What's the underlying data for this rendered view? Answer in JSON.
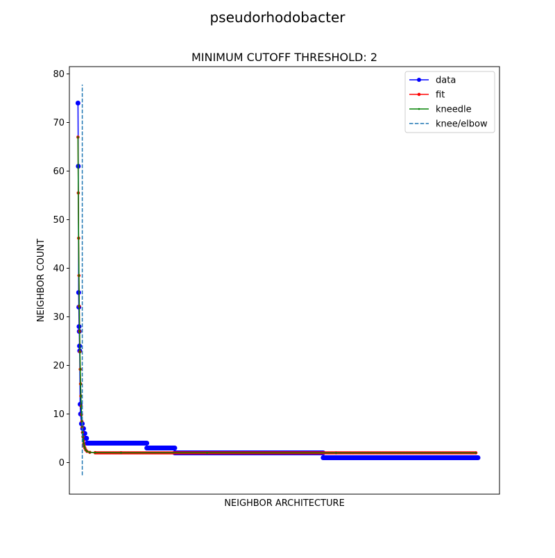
{
  "chart_data": {
    "type": "line",
    "suptitle": "pseudorhodobacter",
    "title": "MINIMUM CUTOFF THRESHOLD: 2",
    "xlabel": "NEIGHBOR ARCHITECTURE",
    "ylabel": "NEIGHBOR COUNT",
    "ylim": [
      -6.5,
      81.5
    ],
    "xlim": [
      -4,
      196
    ],
    "yticks": [
      0,
      10,
      20,
      30,
      40,
      50,
      60,
      70,
      80
    ],
    "xticks": [],
    "legend_position": "upper right",
    "knee_x": 2,
    "knee_ymin": -2.6,
    "knee_ymax": 77.8,
    "colors": {
      "data": "#0000ff",
      "fit": "#ff0000",
      "kneedle": "#008000",
      "knee": "#1f77b4"
    },
    "series": [
      {
        "name": "data",
        "style": "line-marker",
        "runs": [
          {
            "y": 74,
            "start": 0,
            "end": 0
          },
          {
            "y": 61,
            "start": 0.15,
            "end": 0.15
          },
          {
            "y": 35,
            "start": 0.3,
            "end": 0.3
          },
          {
            "y": 32,
            "start": 0.4,
            "end": 0.4
          },
          {
            "y": 28,
            "start": 0.5,
            "end": 0.5
          },
          {
            "y": 27,
            "start": 0.6,
            "end": 0.6
          },
          {
            "y": 24,
            "start": 0.7,
            "end": 0.7
          },
          {
            "y": 23,
            "start": 0.8,
            "end": 0.8
          },
          {
            "y": 12,
            "start": 1.0,
            "end": 1.0
          },
          {
            "y": 10,
            "start": 1.2,
            "end": 1.3
          },
          {
            "y": 8,
            "start": 1.6,
            "end": 2.0
          },
          {
            "y": 7,
            "start": 2.2,
            "end": 2.6
          },
          {
            "y": 6,
            "start": 2.8,
            "end": 3.2
          },
          {
            "y": 5,
            "start": 3.4,
            "end": 4.0
          },
          {
            "y": 4,
            "start": 4.2,
            "end": 32
          },
          {
            "y": 3,
            "start": 32,
            "end": 45
          },
          {
            "y": 2,
            "start": 45,
            "end": 114
          },
          {
            "y": 1,
            "start": 114,
            "end": 186
          }
        ]
      },
      {
        "name": "fit",
        "style": "line-marker",
        "points": [
          [
            0,
            67
          ],
          [
            0.15,
            55.5
          ],
          [
            0.3,
            46.2
          ],
          [
            0.45,
            38.5
          ],
          [
            0.6,
            32.2
          ],
          [
            0.75,
            27
          ],
          [
            0.9,
            22.8
          ],
          [
            1.05,
            19.2
          ],
          [
            1.2,
            16.2
          ],
          [
            1.35,
            13.7
          ],
          [
            1.5,
            11.6
          ],
          [
            1.65,
            9.9
          ],
          [
            1.8,
            8.5
          ],
          [
            1.95,
            7.3
          ],
          [
            2.1,
            6.2
          ],
          [
            2.3,
            5.3
          ],
          [
            2.5,
            4.5
          ],
          [
            2.7,
            3.9
          ],
          [
            2.9,
            3.4
          ],
          [
            3.2,
            3.0
          ],
          [
            3.6,
            2.6
          ],
          [
            4.2,
            2.3
          ],
          [
            5.5,
            2.1
          ],
          [
            8,
            2.05
          ],
          [
            20,
            2.02
          ],
          [
            60,
            2.01
          ],
          [
            120,
            2.0
          ],
          [
            185,
            2.0
          ]
        ]
      },
      {
        "name": "kneedle",
        "style": "line-small-marker",
        "points": [
          [
            0,
            67
          ],
          [
            0.15,
            55.5
          ],
          [
            0.3,
            46.2
          ],
          [
            0.45,
            38.5
          ],
          [
            0.6,
            32.2
          ],
          [
            0.75,
            27
          ],
          [
            0.9,
            22.8
          ],
          [
            1.05,
            19.2
          ],
          [
            1.2,
            16.2
          ],
          [
            1.35,
            13.7
          ],
          [
            1.5,
            11.6
          ],
          [
            1.65,
            9.9
          ],
          [
            1.8,
            8.5
          ],
          [
            1.95,
            7.3
          ],
          [
            2.1,
            6.2
          ],
          [
            2.3,
            5.3
          ],
          [
            2.5,
            4.5
          ],
          [
            2.7,
            3.9
          ],
          [
            2.9,
            3.4
          ],
          [
            3.2,
            3.0
          ],
          [
            3.6,
            2.6
          ],
          [
            4.2,
            2.3
          ],
          [
            5.5,
            2.1
          ],
          [
            8,
            2.05
          ],
          [
            20,
            2.02
          ],
          [
            60,
            2.01
          ],
          [
            120,
            2.0
          ],
          [
            185,
            2.0
          ]
        ]
      },
      {
        "name": "knee/elbow",
        "style": "dashed-vertical"
      }
    ]
  }
}
